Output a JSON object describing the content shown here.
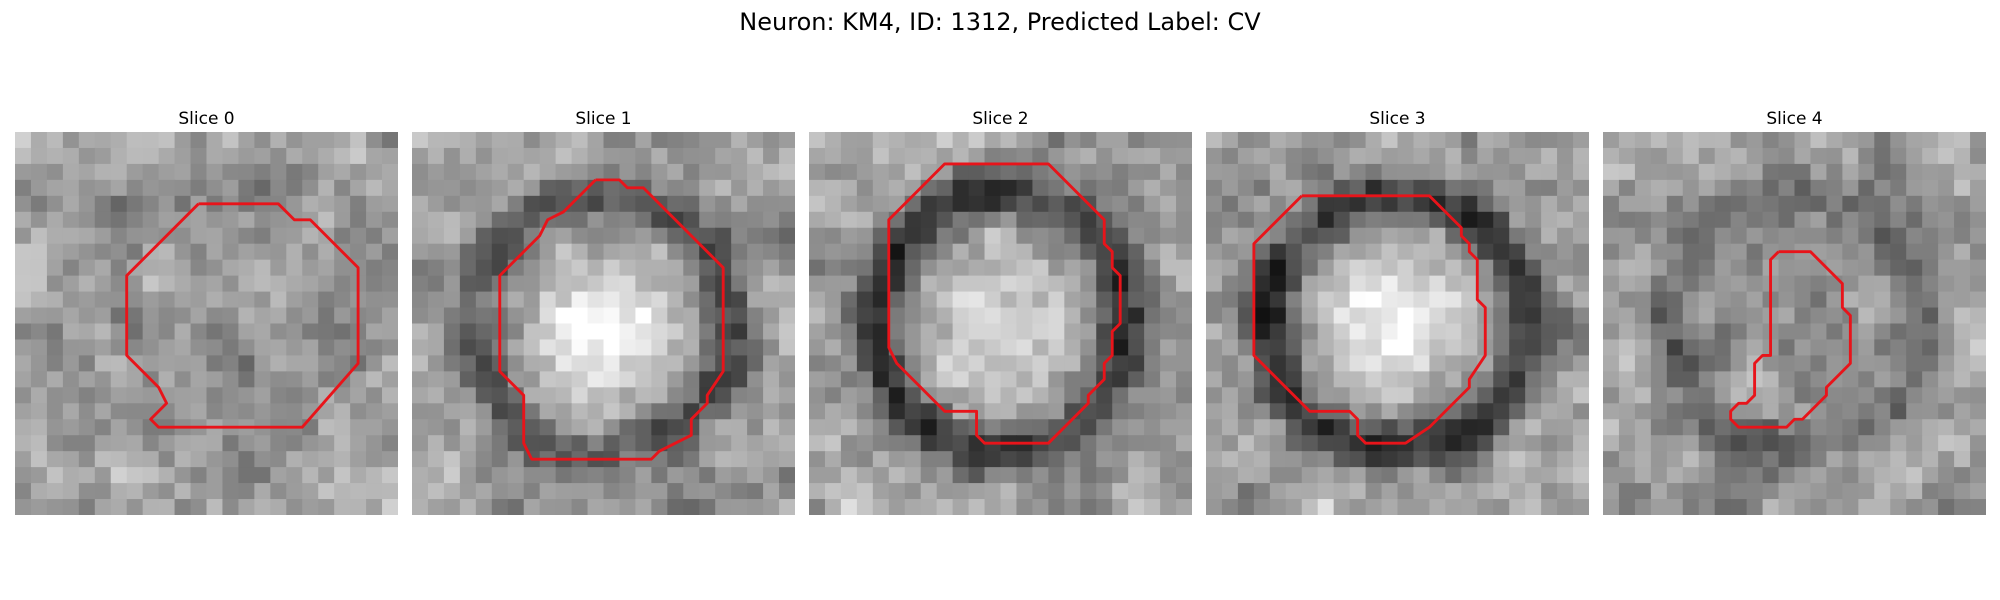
{
  "figure": {
    "title": "Neuron: KM4, ID: 1312, Predicted Label: CV",
    "outline_color": "#e8141a"
  },
  "slices": [
    {
      "label": "Slice 0",
      "ring_darkness": 0.05,
      "center_brightness": -0.04,
      "outline": [
        [
          11.5,
          4.5
        ],
        [
          16.5,
          4.5
        ],
        [
          17.5,
          5.5
        ],
        [
          18.5,
          5.5
        ],
        [
          21.5,
          8.5
        ],
        [
          21.5,
          14.5
        ],
        [
          18,
          18.5
        ],
        [
          9,
          18.5
        ],
        [
          8.5,
          18
        ],
        [
          9,
          17.5
        ],
        [
          9.5,
          17
        ],
        [
          9,
          16
        ],
        [
          8.5,
          15.5
        ],
        [
          7,
          14
        ],
        [
          7,
          9
        ],
        [
          11.5,
          4.5
        ]
      ]
    },
    {
      "label": "Slice 1",
      "ring_darkness": 0.32,
      "center_brightness": 0.32,
      "outline": [
        [
          11.5,
          3
        ],
        [
          13,
          3
        ],
        [
          13.5,
          3.5
        ],
        [
          14.5,
          3.5
        ],
        [
          19.5,
          8.5
        ],
        [
          19.5,
          15
        ],
        [
          18.5,
          16.5
        ],
        [
          18.5,
          17
        ],
        [
          17.5,
          18
        ],
        [
          17.5,
          19
        ],
        [
          16.5,
          19.5
        ],
        [
          15.5,
          20
        ],
        [
          15,
          20.5
        ],
        [
          7.5,
          20.5
        ],
        [
          7,
          19.5
        ],
        [
          7,
          16.5
        ],
        [
          6,
          15.5
        ],
        [
          5.5,
          15
        ],
        [
          5.5,
          9
        ],
        [
          8,
          6.5
        ],
        [
          8.5,
          5.5
        ],
        [
          9.5,
          5
        ],
        [
          10.5,
          4
        ],
        [
          11,
          3.5
        ],
        [
          11.5,
          3
        ]
      ]
    },
    {
      "label": "Slice 2",
      "ring_darkness": 0.42,
      "center_brightness": 0.22,
      "outline": [
        [
          10.5,
          2
        ],
        [
          15,
          2
        ],
        [
          18.5,
          5.5
        ],
        [
          18.5,
          7
        ],
        [
          19,
          7.5
        ],
        [
          19,
          8.5
        ],
        [
          19.5,
          9
        ],
        [
          19.5,
          12
        ],
        [
          19,
          12.5
        ],
        [
          19,
          14
        ],
        [
          18.5,
          14.5
        ],
        [
          18.5,
          15.5
        ],
        [
          17.5,
          16.5
        ],
        [
          17.5,
          17
        ],
        [
          16,
          18.5
        ],
        [
          15,
          19.5
        ],
        [
          11,
          19.5
        ],
        [
          10.5,
          19
        ],
        [
          10.5,
          17.5
        ],
        [
          10,
          17.5
        ],
        [
          8.5,
          17.5
        ],
        [
          5.5,
          14.5
        ],
        [
          5,
          13.5
        ],
        [
          5,
          5.5
        ],
        [
          6.5,
          4
        ],
        [
          7,
          3.5
        ],
        [
          8.5,
          2
        ],
        [
          10.5,
          2
        ]
      ]
    },
    {
      "label": "Slice 3",
      "ring_darkness": 0.42,
      "center_brightness": 0.34,
      "outline": [
        [
          6,
          4
        ],
        [
          14,
          4
        ],
        [
          16,
          6
        ],
        [
          16,
          6.5
        ],
        [
          16.5,
          7
        ],
        [
          16.5,
          7.5
        ],
        [
          17,
          8
        ],
        [
          17,
          10.5
        ],
        [
          17.5,
          11
        ],
        [
          17.5,
          14
        ],
        [
          16.5,
          15.5
        ],
        [
          16.5,
          16
        ],
        [
          15.5,
          17
        ],
        [
          14.5,
          18
        ],
        [
          14,
          18.5
        ],
        [
          12.5,
          19.5
        ],
        [
          10,
          19.5
        ],
        [
          9.5,
          19
        ],
        [
          9.5,
          18
        ],
        [
          9,
          17.5
        ],
        [
          6.5,
          17.5
        ],
        [
          3,
          14
        ],
        [
          3,
          7
        ],
        [
          6,
          4
        ]
      ]
    },
    {
      "label": "Slice 4",
      "ring_darkness": 0.16,
      "center_brightness": -0.1,
      "outline": [
        [
          11,
          7.5
        ],
        [
          13,
          7.5
        ],
        [
          14.5,
          9
        ],
        [
          15,
          9.5
        ],
        [
          15,
          11
        ],
        [
          15.5,
          11.5
        ],
        [
          15.5,
          14.5
        ],
        [
          14.5,
          15.5
        ],
        [
          14,
          16
        ],
        [
          14,
          16.5
        ],
        [
          13.5,
          17
        ],
        [
          13,
          17.5
        ],
        [
          12.5,
          18
        ],
        [
          12,
          18
        ],
        [
          11.5,
          18.5
        ],
        [
          8.5,
          18.5
        ],
        [
          8.5,
          18.5
        ],
        [
          8,
          18
        ],
        [
          8,
          17.5
        ],
        [
          8.5,
          17
        ],
        [
          9,
          17
        ],
        [
          9.5,
          16.5
        ],
        [
          9.5,
          14.5
        ],
        [
          10,
          14
        ],
        [
          10.5,
          14
        ],
        [
          10.5,
          13
        ],
        [
          10.5,
          8
        ],
        [
          11,
          7.5
        ]
      ]
    }
  ]
}
